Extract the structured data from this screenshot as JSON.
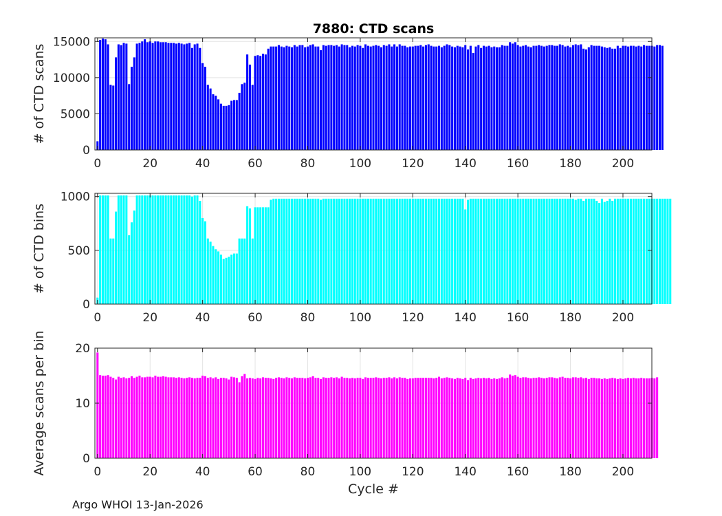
{
  "footer": "Argo WHOI 13-Jan-2026",
  "chart_data": [
    {
      "type": "bar",
      "title": "7880: CTD scans",
      "xlabel": "",
      "ylabel": "# of CTD scans",
      "color": "#0000ff",
      "xlim": [
        -1,
        211
      ],
      "ylim": [
        0,
        15500
      ],
      "xticks": [
        0,
        20,
        40,
        60,
        80,
        100,
        120,
        140,
        160,
        180,
        200
      ],
      "yticks": [
        0,
        5000,
        10000,
        15000
      ],
      "x_start": 0,
      "values": [
        1200,
        15200,
        15400,
        15300,
        14600,
        9000,
        8900,
        12800,
        14600,
        14500,
        14800,
        14700,
        9100,
        11500,
        12800,
        14700,
        14800,
        15000,
        15300,
        14900,
        15000,
        14800,
        15000,
        15000,
        14900,
        14900,
        14900,
        14800,
        14800,
        14800,
        14700,
        14800,
        14700,
        14600,
        14700,
        14800,
        14100,
        14600,
        14700,
        14100,
        12000,
        11500,
        9000,
        8500,
        7700,
        7500,
        7000,
        6400,
        6100,
        6100,
        6200,
        6800,
        6900,
        6900,
        7900,
        9100,
        9300,
        13200,
        11800,
        9000,
        13000,
        13100,
        13000,
        13300,
        13200,
        14000,
        14300,
        14300,
        14300,
        14500,
        14300,
        14200,
        14400,
        14300,
        14200,
        14500,
        14300,
        14500,
        14500,
        14200,
        14300,
        14500,
        14600,
        14300,
        14300,
        13800,
        14500,
        14400,
        14500,
        14500,
        14400,
        14500,
        14300,
        14600,
        14500,
        14500,
        14200,
        14400,
        14300,
        14500,
        14400,
        14100,
        14600,
        14400,
        14300,
        14400,
        14500,
        14400,
        14200,
        14500,
        14400,
        14600,
        14300,
        14600,
        14300,
        14600,
        14400,
        14400,
        14200,
        14300,
        14300,
        14400,
        14400,
        14500,
        14300,
        14500,
        14600,
        14400,
        14300,
        14300,
        14400,
        14200,
        14400,
        14600,
        14500,
        14300,
        14200,
        14400,
        14300,
        14200,
        14500,
        13900,
        14400,
        13400,
        14300,
        14500,
        14100,
        14400,
        14300,
        14400,
        14200,
        14300,
        14200,
        14200,
        14500,
        14400,
        14400,
        14900,
        14700,
        14900,
        14500,
        14300,
        14400,
        14500,
        14300,
        14200,
        14400,
        14400,
        14500,
        14400,
        14300,
        14400,
        14500,
        14500,
        14400,
        14400,
        14600,
        14500,
        14300,
        14400,
        14200,
        14500,
        14600,
        14500,
        14600,
        14000,
        13900,
        14200,
        14500,
        14400,
        14400,
        14400,
        14300,
        14200,
        14100,
        14200,
        14000,
        14000,
        14400,
        14100,
        14400,
        14400,
        14300,
        14400,
        14400,
        14300,
        14400,
        14300,
        14500,
        14400,
        14400,
        14400,
        14300,
        14500,
        14500,
        14400
      ],
      "title_y": 46
    },
    {
      "type": "bar",
      "title": "",
      "xlabel": "",
      "ylabel": "# of CTD bins",
      "color": "#00ffff",
      "xlim": [
        -1,
        211
      ],
      "ylim": [
        0,
        1030
      ],
      "xticks": [
        0,
        20,
        40,
        60,
        80,
        100,
        120,
        140,
        160,
        180,
        200
      ],
      "yticks": [
        0,
        500,
        1000
      ],
      "x_start": 0,
      "values": [
        60,
        1010,
        1010,
        1010,
        1010,
        610,
        610,
        860,
        1010,
        1010,
        1010,
        1010,
        640,
        760,
        870,
        1010,
        1010,
        1010,
        1010,
        1010,
        1010,
        1010,
        1010,
        1010,
        1010,
        1010,
        1010,
        1010,
        1010,
        1010,
        1010,
        1010,
        1010,
        1010,
        1010,
        1010,
        1000,
        1010,
        1010,
        960,
        800,
        770,
        610,
        580,
        540,
        510,
        490,
        460,
        420,
        430,
        440,
        460,
        470,
        470,
        610,
        610,
        610,
        910,
        890,
        610,
        900,
        900,
        900,
        900,
        900,
        900,
        970,
        980,
        980,
        980,
        980,
        980,
        980,
        980,
        980,
        980,
        980,
        980,
        980,
        980,
        980,
        980,
        980,
        980,
        980,
        970,
        980,
        980,
        980,
        980,
        980,
        980,
        980,
        980,
        980,
        980,
        980,
        980,
        980,
        980,
        980,
        980,
        980,
        980,
        980,
        980,
        980,
        980,
        980,
        980,
        980,
        980,
        980,
        980,
        980,
        980,
        980,
        980,
        980,
        980,
        980,
        980,
        980,
        980,
        980,
        980,
        980,
        980,
        980,
        980,
        980,
        980,
        980,
        980,
        980,
        980,
        980,
        980,
        980,
        980,
        880,
        970,
        980,
        980,
        980,
        980,
        980,
        980,
        980,
        980,
        980,
        980,
        980,
        980,
        980,
        980,
        980,
        980,
        980,
        980,
        980,
        980,
        980,
        980,
        980,
        980,
        980,
        980,
        980,
        980,
        980,
        980,
        980,
        980,
        980,
        980,
        980,
        980,
        980,
        980,
        980,
        980,
        970,
        980,
        980,
        960,
        980,
        980,
        980,
        980,
        960,
        940,
        980,
        950,
        960,
        980,
        960,
        980,
        980,
        980,
        980,
        980,
        980,
        980,
        980,
        980,
        980,
        980,
        980,
        980,
        980,
        980,
        980,
        980,
        980,
        980,
        980,
        980,
        980
      ]
    },
    {
      "type": "bar",
      "title": "",
      "xlabel": "Cycle #",
      "ylabel": "Average scans per bin",
      "color": "#ff00ff",
      "xlim": [
        -1,
        211
      ],
      "ylim": [
        0,
        20
      ],
      "xticks": [
        0,
        20,
        40,
        60,
        80,
        100,
        120,
        140,
        160,
        180,
        200
      ],
      "yticks": [
        0,
        10,
        20
      ],
      "x_start": 0,
      "values": [
        19.2,
        15.1,
        15.0,
        15.0,
        15.1,
        14.8,
        14.6,
        14.3,
        14.8,
        14.6,
        14.7,
        14.5,
        14.6,
        14.9,
        14.6,
        14.8,
        15.0,
        14.7,
        14.7,
        14.8,
        14.8,
        14.7,
        15.0,
        14.8,
        14.8,
        14.9,
        14.8,
        14.7,
        14.7,
        14.7,
        14.6,
        14.7,
        14.6,
        14.5,
        14.6,
        14.7,
        14.6,
        14.5,
        14.6,
        14.6,
        15.0,
        14.9,
        14.6,
        14.7,
        14.5,
        14.7,
        14.4,
        14.6,
        14.6,
        14.5,
        14.3,
        14.8,
        14.7,
        14.6,
        13.8,
        14.9,
        15.3,
        14.5,
        14.6,
        14.5,
        14.4,
        14.6,
        14.5,
        14.7,
        14.6,
        14.6,
        14.5,
        14.4,
        14.6,
        14.7,
        14.6,
        14.5,
        14.7,
        14.6,
        14.5,
        14.7,
        14.6,
        14.6,
        14.6,
        14.5,
        14.6,
        14.7,
        14.9,
        14.6,
        14.6,
        14.4,
        14.7,
        14.6,
        14.6,
        14.7,
        14.6,
        14.7,
        14.5,
        14.8,
        14.6,
        14.6,
        14.5,
        14.6,
        14.5,
        14.6,
        14.6,
        14.4,
        14.7,
        14.6,
        14.6,
        14.6,
        14.7,
        14.6,
        14.5,
        14.6,
        14.6,
        14.7,
        14.5,
        14.7,
        14.5,
        14.7,
        14.6,
        14.6,
        14.4,
        14.5,
        14.5,
        14.6,
        14.6,
        14.6,
        14.6,
        14.6,
        14.6,
        14.6,
        14.5,
        14.6,
        14.8,
        14.5,
        14.6,
        14.7,
        14.6,
        14.5,
        14.4,
        14.6,
        14.5,
        14.4,
        14.6,
        14.2,
        14.6,
        14.4,
        14.5,
        14.6,
        14.5,
        14.6,
        14.5,
        14.6,
        14.4,
        14.5,
        14.4,
        14.5,
        14.7,
        14.5,
        14.6,
        15.2,
        15.0,
        15.1,
        14.8,
        14.6,
        14.7,
        14.7,
        14.6,
        14.5,
        14.6,
        14.6,
        14.7,
        14.6,
        14.5,
        14.6,
        14.7,
        14.7,
        14.6,
        14.5,
        14.7,
        14.8,
        14.6,
        14.6,
        14.5,
        14.7,
        14.7,
        14.6,
        14.7,
        14.5,
        14.6,
        14.4,
        14.6,
        14.6,
        14.5,
        14.5,
        14.4,
        14.5,
        14.4,
        14.5,
        14.6,
        14.5,
        14.4,
        14.5,
        14.4,
        14.5,
        14.6,
        14.5,
        14.6,
        14.5,
        14.5,
        14.6,
        14.5,
        14.5,
        14.5,
        14.6,
        14.5,
        14.7
      ]
    }
  ]
}
